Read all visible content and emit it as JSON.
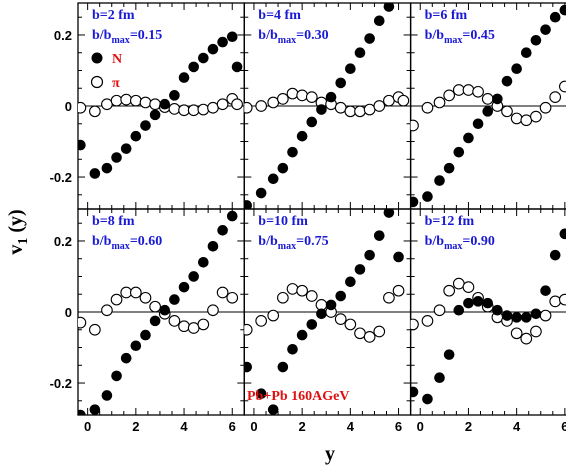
{
  "chart_data": {
    "type": "scatter",
    "xlabel": "y",
    "ylabel": "v",
    "ylabel_sub": "1",
    "ylabel_arg": " (y)",
    "xlim": [
      -0.4,
      6.5
    ],
    "ylim": [
      -0.29,
      0.29
    ],
    "x_ticks": [
      0,
      2,
      4,
      6
    ],
    "y_ticks": [
      -0.2,
      0,
      0.2
    ],
    "x_tick_labels": [
      "0",
      "2",
      "4",
      "6"
    ],
    "y_tick_labels": [
      "-0.2",
      "0",
      "0.2"
    ],
    "zero_line": true,
    "grid": false,
    "legend": {
      "placement": "top-left of first panel",
      "entries": [
        {
          "name": "N",
          "marker": "filled-circle"
        },
        {
          "name": "π",
          "marker": "open-circle"
        }
      ]
    },
    "annotation": "Pb+Pb 160AGeV",
    "series_colors": {
      "N": "#000000",
      "pi": "#000000",
      "labels": "#1a1ad4",
      "legend": "#e01010"
    },
    "panels": [
      {
        "b_label": "b=2 fm",
        "ratio_prefix": "b/b",
        "ratio_sub": "max",
        "ratio_value": "=0.15",
        "series": [
          {
            "name": "N",
            "x": [
              -0.3,
              0.3,
              0.8,
              1.2,
              1.6,
              2.0,
              2.4,
              2.8,
              3.2,
              3.6,
              4.0,
              4.4,
              4.8,
              5.2,
              5.6,
              6.0
            ],
            "y": [
              -0.11,
              -0.19,
              -0.175,
              -0.145,
              -0.12,
              -0.085,
              -0.055,
              -0.025,
              0.005,
              0.03,
              0.08,
              0.11,
              0.135,
              0.16,
              0.18,
              0.195
            ]
          },
          {
            "name": "π",
            "x": [
              -0.3,
              0.3,
              0.8,
              1.2,
              1.6,
              2.0,
              2.4,
              2.8,
              3.2,
              3.6,
              4.0,
              4.4,
              4.8,
              5.2,
              5.6,
              6.0
            ],
            "y": [
              -0.005,
              -0.015,
              0.005,
              0.015,
              0.018,
              0.015,
              0.01,
              0.005,
              -0.003,
              -0.008,
              -0.012,
              -0.012,
              -0.01,
              -0.005,
              0.005,
              0.02
            ]
          }
        ],
        "extra_N": [
          {
            "x": 6.2,
            "y": 0.11
          }
        ],
        "extra_pi": [
          {
            "x": 6.2,
            "y": 0.005
          }
        ]
      },
      {
        "b_label": "b=4 fm",
        "ratio_prefix": "b/b",
        "ratio_sub": "max",
        "ratio_value": "=0.30",
        "series": [
          {
            "name": "N",
            "x": [
              -0.3,
              0.3,
              0.8,
              1.2,
              1.6,
              2.0,
              2.4,
              2.8,
              3.2,
              3.6,
              4.0,
              4.4,
              4.8,
              5.2,
              5.6,
              6.0
            ],
            "y": [
              -0.28,
              -0.245,
              -0.205,
              -0.175,
              -0.13,
              -0.085,
              -0.045,
              -0.01,
              0.025,
              0.065,
              0.105,
              0.15,
              0.19,
              0.24,
              0.28,
              0.31
            ]
          },
          {
            "name": "π",
            "x": [
              -0.3,
              0.3,
              0.8,
              1.2,
              1.6,
              2.0,
              2.4,
              2.8,
              3.2,
              3.6,
              4.0,
              4.4,
              4.8,
              5.2,
              5.6,
              6.0
            ],
            "y": [
              -0.005,
              0.0,
              0.01,
              0.02,
              0.035,
              0.03,
              0.025,
              0.01,
              0.005,
              -0.005,
              -0.015,
              -0.015,
              -0.01,
              0.0,
              0.015,
              0.025
            ]
          }
        ],
        "extra_N": [],
        "extra_pi": [
          {
            "x": 6.2,
            "y": 0.015
          }
        ]
      },
      {
        "b_label": "b=6 fm",
        "ratio_prefix": "b/b",
        "ratio_sub": "max",
        "ratio_value": "=0.45",
        "series": [
          {
            "name": "N",
            "x": [
              -0.3,
              0.3,
              0.8,
              1.2,
              1.6,
              2.0,
              2.4,
              2.8,
              3.2,
              3.6,
              4.0,
              4.4,
              4.8,
              5.2,
              5.6,
              6.0
            ],
            "y": [
              -0.27,
              -0.255,
              -0.21,
              -0.175,
              -0.13,
              -0.09,
              -0.05,
              -0.015,
              0.02,
              0.07,
              0.105,
              0.15,
              0.185,
              0.215,
              0.25,
              0.27
            ]
          },
          {
            "name": "π",
            "x": [
              -0.3,
              0.3,
              0.8,
              1.2,
              1.6,
              2.0,
              2.4,
              2.8,
              3.2,
              3.6,
              4.0,
              4.4,
              4.8,
              5.2,
              5.6,
              6.0
            ],
            "y": [
              -0.055,
              -0.005,
              0.01,
              0.03,
              0.045,
              0.045,
              0.04,
              0.02,
              0.0,
              -0.015,
              -0.035,
              -0.04,
              -0.03,
              -0.005,
              0.025,
              0.055
            ]
          }
        ],
        "extra_N": [],
        "extra_pi": []
      },
      {
        "b_label": "b=8 fm",
        "ratio_prefix": "b/b",
        "ratio_sub": "max",
        "ratio_value": "=0.60",
        "series": [
          {
            "name": "N",
            "x": [
              -0.3,
              0.3,
              0.8,
              1.2,
              1.6,
              2.0,
              2.4,
              2.8,
              3.2,
              3.6,
              4.0,
              4.4,
              4.8,
              5.2,
              5.6,
              6.0
            ],
            "y": [
              -0.29,
              -0.275,
              -0.235,
              -0.18,
              -0.13,
              -0.095,
              -0.065,
              -0.025,
              0.005,
              0.035,
              0.07,
              0.1,
              0.14,
              0.185,
              0.23,
              0.27
            ]
          },
          {
            "name": "π",
            "x": [
              -0.3,
              0.3,
              0.8,
              1.2,
              1.6,
              2.0,
              2.4,
              2.8,
              3.2,
              3.6,
              4.0,
              4.4,
              4.8,
              5.2,
              5.6,
              6.0
            ],
            "y": [
              -0.03,
              -0.05,
              0.005,
              0.035,
              0.055,
              0.055,
              0.04,
              0.015,
              -0.005,
              -0.025,
              -0.04,
              -0.045,
              -0.035,
              0.005,
              0.055,
              0.04
            ]
          }
        ],
        "extra_N": [],
        "extra_pi": []
      },
      {
        "b_label": "b=10 fm",
        "ratio_prefix": "b/b",
        "ratio_sub": "max",
        "ratio_value": "=0.75",
        "series": [
          {
            "name": "N",
            "x": [
              -0.3,
              0.3,
              0.8,
              1.2,
              1.6,
              2.0,
              2.4,
              2.8,
              3.2,
              3.6,
              4.0,
              4.4,
              4.8,
              5.2,
              5.6,
              6.0
            ],
            "y": [
              -0.155,
              -0.23,
              -0.275,
              -0.155,
              -0.105,
              -0.065,
              -0.035,
              -0.005,
              0.02,
              0.045,
              0.085,
              0.12,
              0.16,
              0.215,
              0.28,
              0.155
            ]
          },
          {
            "name": "π",
            "x": [
              -0.3,
              0.3,
              0.8,
              1.2,
              1.6,
              2.0,
              2.4,
              2.8,
              3.2,
              3.6,
              4.0,
              4.4,
              4.8,
              5.2,
              5.6,
              6.0
            ],
            "y": [
              -0.05,
              -0.025,
              -0.01,
              0.04,
              0.065,
              0.06,
              0.045,
              0.02,
              0.0,
              -0.02,
              -0.035,
              -0.06,
              -0.07,
              -0.055,
              0.04,
              0.06
            ]
          }
        ],
        "extra_N": [],
        "extra_pi": []
      },
      {
        "b_label": "b=12 fm",
        "ratio_prefix": "b/b",
        "ratio_sub": "max",
        "ratio_value": "=0.90",
        "series": [
          {
            "name": "N",
            "x": [
              -0.3,
              0.3,
              0.8,
              1.2,
              1.6,
              2.0,
              2.4,
              2.8,
              3.2,
              3.6,
              4.0,
              4.4,
              4.8,
              5.2,
              5.6,
              6.0
            ],
            "y": [
              -0.225,
              -0.245,
              -0.185,
              -0.12,
              0.005,
              0.025,
              0.03,
              0.025,
              0.005,
              -0.01,
              -0.015,
              -0.015,
              -0.005,
              0.06,
              0.16,
              0.22
            ]
          },
          {
            "name": "π",
            "x": [
              -0.3,
              0.3,
              0.8,
              1.2,
              1.6,
              2.0,
              2.4,
              2.8,
              3.2,
              3.6,
              4.0,
              4.4,
              4.8,
              5.2,
              5.6,
              6.0
            ],
            "y": [
              -0.035,
              -0.025,
              0.005,
              0.06,
              0.08,
              0.07,
              0.04,
              0.015,
              -0.015,
              -0.025,
              -0.06,
              -0.075,
              -0.055,
              -0.01,
              0.03,
              0.035
            ]
          }
        ],
        "extra_N": [],
        "extra_pi": []
      }
    ]
  }
}
